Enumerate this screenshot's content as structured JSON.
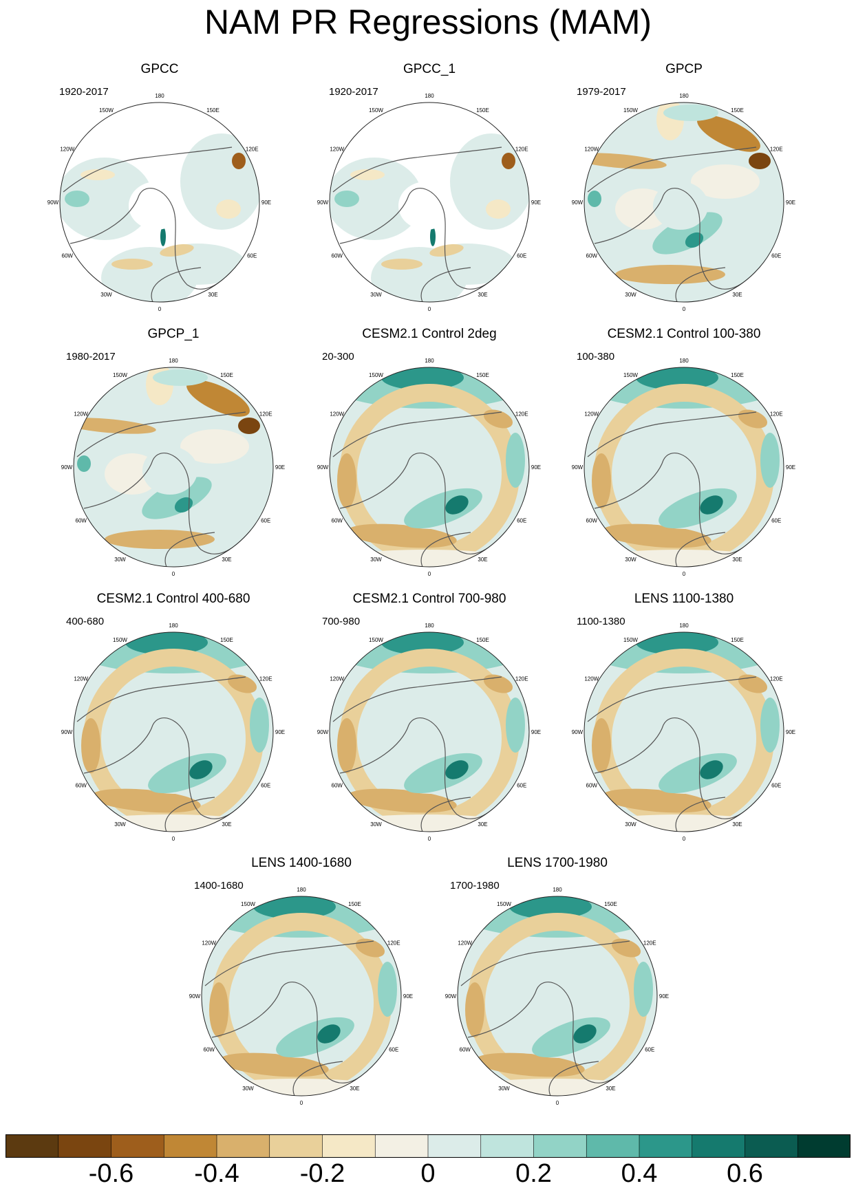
{
  "title": "NAM PR Regressions (MAM)",
  "map_labels": {
    "longitudes": [
      "180",
      "150E",
      "120E",
      "90E",
      "60E",
      "30E",
      "0",
      "30W",
      "60W",
      "90W",
      "120W",
      "150W"
    ]
  },
  "panels": [
    {
      "title": "GPCC",
      "period": "1920-2017",
      "style": "gpcc"
    },
    {
      "title": "GPCC_1",
      "period": "1920-2017",
      "style": "gpcc"
    },
    {
      "title": "GPCP",
      "period": "1979-2017",
      "style": "gpcp"
    },
    {
      "title": "GPCP_1",
      "period": "1980-2017",
      "style": "gpcp"
    },
    {
      "title": "CESM2.1 Control 2deg",
      "period": "20-300",
      "style": "model"
    },
    {
      "title": "CESM2.1 Control 100-380",
      "period": "100-380",
      "style": "model"
    },
    {
      "title": "CESM2.1 Control 400-680",
      "period": "400-680",
      "style": "model"
    },
    {
      "title": "CESM2.1 Control 700-980",
      "period": "700-980",
      "style": "model"
    },
    {
      "title": "LENS 1100-1380",
      "period": "1100-1380",
      "style": "model"
    },
    {
      "title": "LENS 1400-1680",
      "period": "1400-1680",
      "style": "model"
    },
    {
      "title": "LENS 1700-1980",
      "period": "1700-1980",
      "style": "model"
    }
  ],
  "colorbar": {
    "colors": [
      "#5c3a10",
      "#7a4510",
      "#9e5e1c",
      "#c08735",
      "#d9b06c",
      "#e9d09a",
      "#f5e8c6",
      "#f3f0e4",
      "#dcece9",
      "#bfe4dd",
      "#92d3c6",
      "#5fb9aa",
      "#2c978a",
      "#157a6e",
      "#0b5c51",
      "#003c30"
    ],
    "labels": [
      "-0.6",
      "-0.4",
      "-0.2",
      "0",
      "0.2",
      "0.4",
      "0.6"
    ],
    "min": -0.8,
    "max": 0.8
  }
}
